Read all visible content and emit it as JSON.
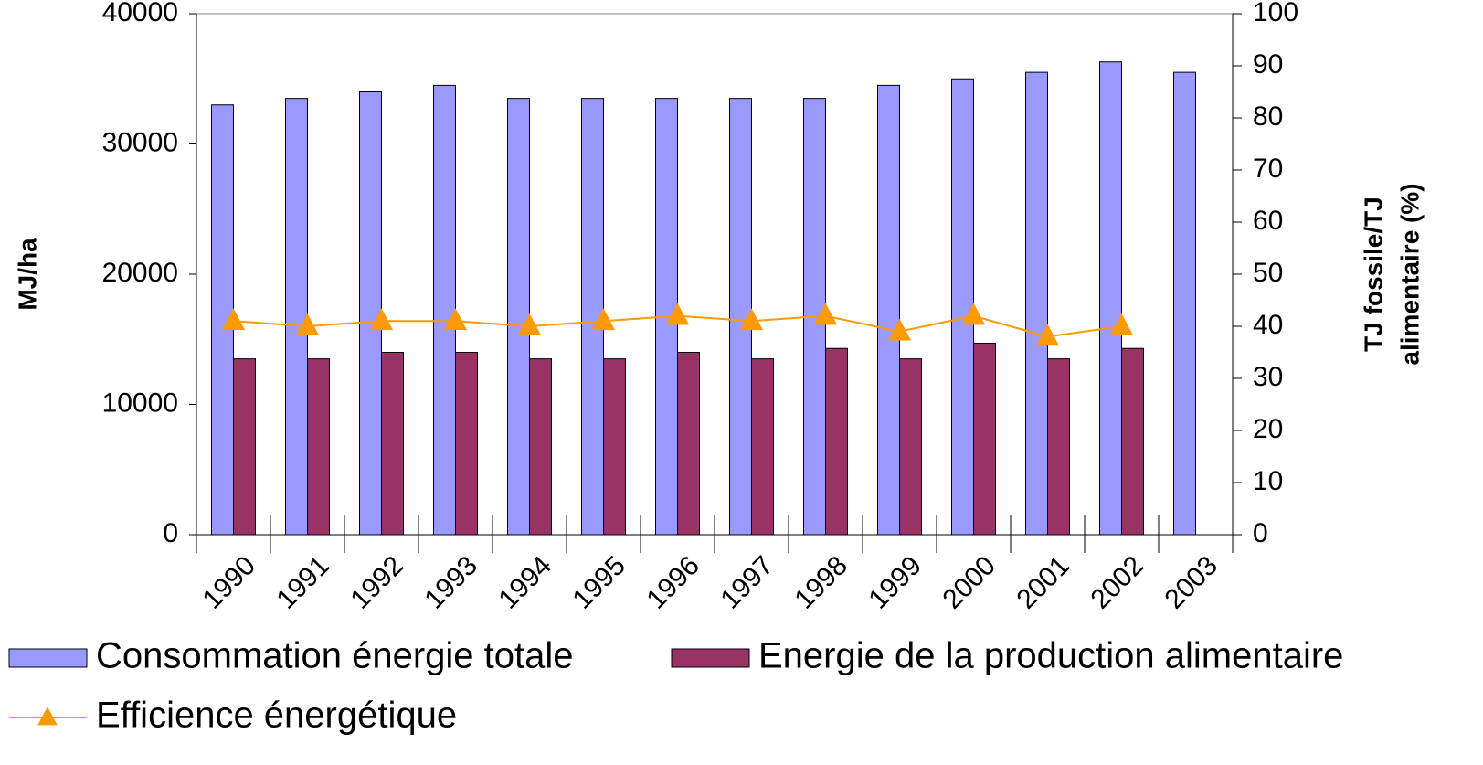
{
  "chart_data": {
    "type": "bar",
    "categories": [
      "1990",
      "1991",
      "1992",
      "1993",
      "1994",
      "1995",
      "1996",
      "1997",
      "1998",
      "1999",
      "2000",
      "2001",
      "2002",
      "2003"
    ],
    "series": [
      {
        "name": "Consommation énergie totale",
        "color": "#9999ff",
        "values": [
          33000,
          33500,
          34000,
          34500,
          33500,
          33500,
          33500,
          33500,
          33500,
          34500,
          35000,
          35500,
          36300,
          35500
        ]
      },
      {
        "name": "Energie de la production alimentaire",
        "color": "#993366",
        "values": [
          13500,
          13500,
          14000,
          14000,
          13500,
          13500,
          14000,
          13500,
          14300,
          13500,
          14700,
          13500,
          14300,
          null
        ]
      },
      {
        "name": "Efficience énergétique",
        "color": "#ff9900",
        "type": "line",
        "axis": "y2",
        "values": [
          41,
          40,
          41,
          41,
          40,
          41,
          42,
          41,
          42,
          39,
          42,
          38,
          40,
          null
        ]
      }
    ],
    "ylabel": "MJ/ha",
    "y2label": [
      "TJ fossile/TJ",
      "alimentaire (%)"
    ],
    "ylim": [
      0,
      40000
    ],
    "yticks": [
      0,
      10000,
      20000,
      30000,
      40000
    ],
    "y2lim": [
      0,
      100
    ],
    "y2ticks": [
      0,
      10,
      20,
      30,
      40,
      50,
      60,
      70,
      80,
      90,
      100
    ]
  }
}
